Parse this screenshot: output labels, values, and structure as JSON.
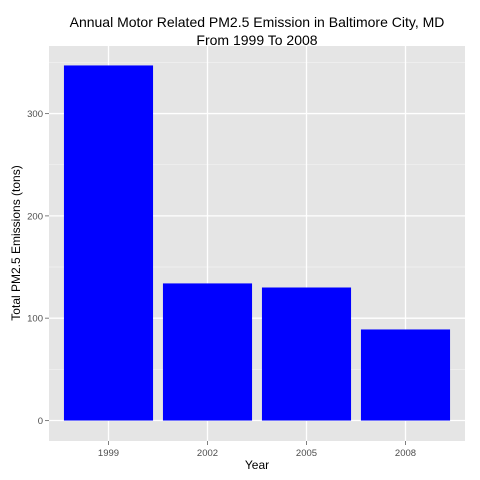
{
  "chart_data": {
    "type": "bar",
    "title": [
      "Annual Motor Related PM2.5 Emission in Baltimore City, MD",
      "From 1999 To 2008"
    ],
    "xlabel": "Year",
    "ylabel": "Total PM2.5 Emissions (tons)",
    "categories": [
      "1999",
      "2002",
      "2005",
      "2008"
    ],
    "values": [
      347,
      134,
      130,
      89
    ],
    "ylim": [
      -20,
      366
    ],
    "yticks": [
      0,
      100,
      200,
      300
    ],
    "grid": true,
    "legend": "none",
    "colors": {
      "bar": "#0000ff",
      "panel": "#e5e5e5",
      "grid_major": "#ffffff",
      "grid_minor": "#f2f2f2",
      "tick_text": "#4d4d4d"
    }
  }
}
